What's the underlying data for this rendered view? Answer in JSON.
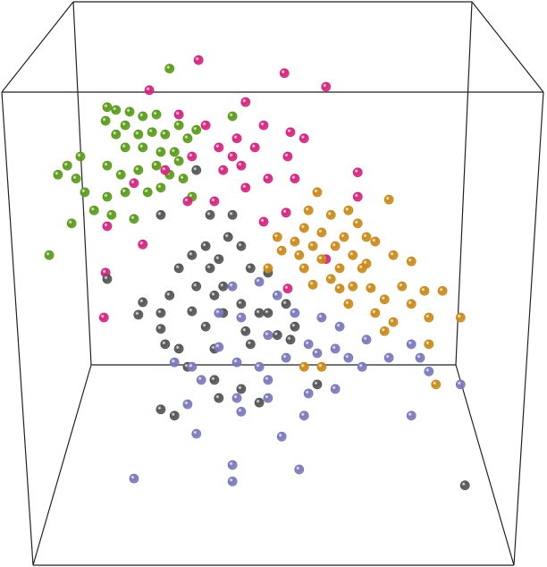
{
  "chart_data": {
    "type": "scatter",
    "xlim": [
      0,
      100
    ],
    "ylim": [
      0,
      100
    ],
    "series": [
      {
        "color": "#5b9b1c",
        "x": [
          31.0,
          19.6,
          21.2,
          23.7,
          26.1,
          28.6,
          19.3,
          22.9,
          21.2,
          25.3,
          27.8,
          30.2,
          32.7,
          34.3,
          35.9,
          22.9,
          26.1,
          29.4,
          31.9,
          12.3,
          14.7,
          10.6,
          13.9,
          19.6,
          22.1,
          25.3,
          28.6,
          31.0,
          33.5,
          15.5,
          19.6,
          22.9,
          27.0,
          29.4,
          17.2,
          20.4,
          24.5,
          13.1,
          9.0,
          35.1,
          42.5,
          32.7
        ],
        "y": [
          87.9,
          81.1,
          80.6,
          80.3,
          79.5,
          79.8,
          78.7,
          77.9,
          76.3,
          76.3,
          76.7,
          76.3,
          77.9,
          75.6,
          77.1,
          74.0,
          74.0,
          73.2,
          73.2,
          70.8,
          72.4,
          69.2,
          68.5,
          70.8,
          69.2,
          70.0,
          70.8,
          69.2,
          68.5,
          66.1,
          65.3,
          66.1,
          66.1,
          66.9,
          62.9,
          62.1,
          61.4,
          60.6,
          55.0,
          65.3,
          79.5,
          71.6
        ]
      },
      {
        "color": "#d4257f",
        "x": [
          36.3,
          52.0,
          59.6,
          27.3,
          44.9,
          32.7,
          37.6,
          48.2,
          53.1,
          55.6,
          43.3,
          40.0,
          46.6,
          35.1,
          52.6,
          44.1,
          40.8,
          53.9,
          65.4,
          49.0,
          44.9,
          34.3,
          39.2,
          24.5,
          19.6,
          52.3,
          48.2,
          26.1,
          19.3,
          52.6,
          59.6,
          19.0,
          65.4,
          42.5,
          30.2
        ],
        "y": [
          89.4,
          87.1,
          84.7,
          84.1,
          82.0,
          79.8,
          77.9,
          77.9,
          76.7,
          75.6,
          75.6,
          74.0,
          74.0,
          72.4,
          72.4,
          70.8,
          70.0,
          68.5,
          69.6,
          68.5,
          66.9,
          64.5,
          64.5,
          67.7,
          60.1,
          62.5,
          60.9,
          56.9,
          51.9,
          49.1,
          54.3,
          44.0,
          65.3,
          72.4,
          70.0
        ]
      },
      {
        "color": "#555555",
        "x": [
          35.9,
          38.4,
          42.5,
          29.4,
          41.7,
          37.6,
          44.1,
          35.1,
          40.0,
          32.7,
          38.4,
          45.8,
          19.6,
          35.9,
          40.8,
          49.0,
          26.1,
          31.0,
          39.2,
          44.1,
          47.4,
          25.3,
          29.4,
          35.1,
          40.8,
          49.0,
          52.3,
          29.4,
          37.6,
          44.9,
          50.7,
          32.7,
          39.2,
          45.8,
          53.1,
          30.2,
          34.3,
          39.2,
          44.1,
          47.4,
          40.0,
          29.4,
          31.9,
          58.0,
          85.0,
          53.9
        ],
        "y": [
          70.0,
          62.1,
          62.1,
          62.1,
          58.2,
          56.6,
          56.6,
          55.0,
          54.3,
          52.7,
          52.7,
          52.7,
          50.8,
          49.5,
          49.5,
          51.9,
          46.7,
          47.9,
          47.9,
          46.4,
          44.8,
          44.5,
          44.8,
          45.1,
          44.8,
          44.8,
          46.4,
          42.0,
          42.4,
          41.6,
          40.9,
          38.5,
          38.5,
          39.3,
          40.1,
          39.3,
          35.3,
          33.0,
          31.4,
          29.0,
          29.8,
          27.8,
          26.7,
          32.2,
          14.4,
          42.4
        ]
      },
      {
        "color": "#c98b1b",
        "x": [
          58.0,
          71.1,
          56.4,
          60.5,
          63.7,
          65.4,
          55.6,
          58.8,
          62.9,
          67.0,
          50.7,
          53.9,
          57.2,
          61.3,
          68.6,
          51.5,
          58.8,
          64.5,
          67.0,
          71.9,
          75.2,
          49.0,
          55.6,
          62.1,
          66.2,
          60.5,
          64.5,
          67.8,
          73.5,
          77.6,
          80.9,
          57.2,
          70.3,
          75.2,
          63.7,
          68.6,
          71.9,
          78.4,
          84.2,
          70.3,
          78.4,
          55.6,
          58.8,
          79.7,
          62.1,
          54.7
        ],
        "y": [
          66.1,
          64.8,
          62.9,
          62.1,
          62.9,
          60.6,
          59.8,
          59.0,
          58.2,
          58.2,
          58.2,
          57.4,
          56.6,
          56.6,
          57.4,
          55.8,
          54.3,
          55.0,
          53.5,
          55.0,
          53.9,
          52.7,
          52.7,
          52.7,
          52.7,
          50.8,
          49.5,
          49.2,
          49.5,
          48.7,
          48.7,
          49.8,
          47.2,
          46.4,
          46.4,
          44.8,
          43.2,
          44.0,
          44.0,
          41.6,
          39.3,
          35.3,
          35.3,
          32.2,
          49.1,
          55.0
        ]
      },
      {
        "color": "#7b79bb",
        "x": [
          42.5,
          47.4,
          40.0,
          44.1,
          50.7,
          53.9,
          58.8,
          62.1,
          49.0,
          40.0,
          56.4,
          61.3,
          67.0,
          75.2,
          35.1,
          43.3,
          47.4,
          52.3,
          58.0,
          63.7,
          66.2,
          71.1,
          76.8,
          78.4,
          36.8,
          49.0,
          56.4,
          61.3,
          43.3,
          34.3,
          44.1,
          49.0,
          55.6,
          75.2,
          84.2,
          35.9,
          51.5,
          42.5,
          54.7,
          24.5,
          42.5,
          31.9
        ],
        "y": [
          49.5,
          50.3,
          44.8,
          44.0,
          47.9,
          44.8,
          44.0,
          42.4,
          40.9,
          38.8,
          39.3,
          38.5,
          40.1,
          39.3,
          35.3,
          36.1,
          35.3,
          36.9,
          37.7,
          36.9,
          35.3,
          36.9,
          36.9,
          34.5,
          33.0,
          33.0,
          30.6,
          31.4,
          29.8,
          28.7,
          27.4,
          29.8,
          26.7,
          26.7,
          32.2,
          23.5,
          23.0,
          18.0,
          17.2,
          15.6,
          15.1,
          36.1
        ]
      }
    ]
  }
}
